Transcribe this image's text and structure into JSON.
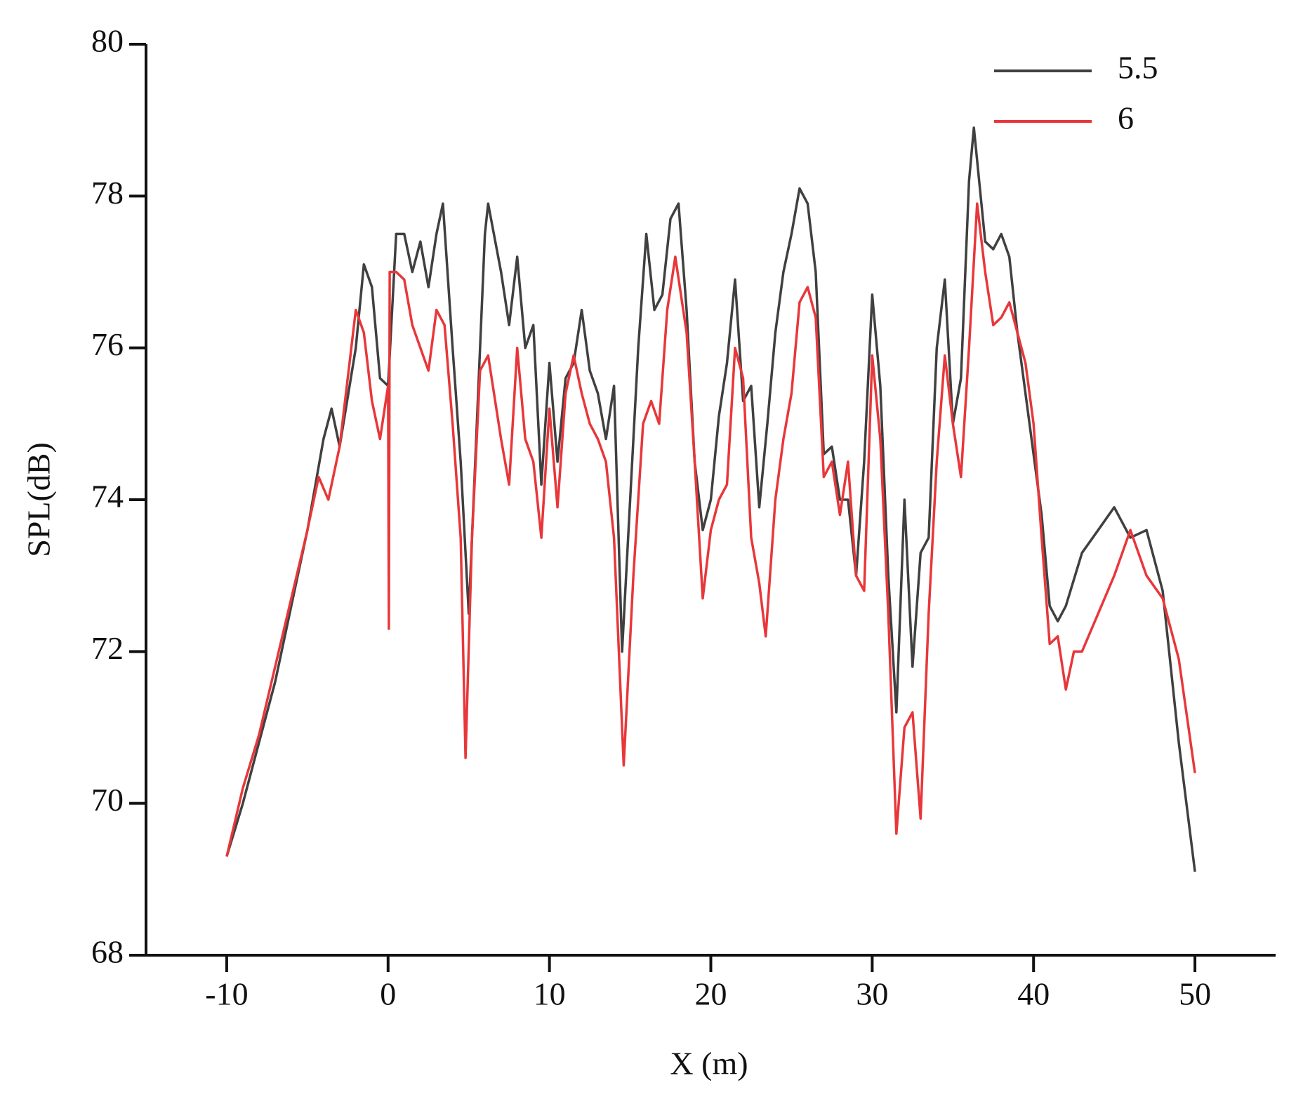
{
  "chart_data": {
    "type": "line",
    "xlabel": "X (m)",
    "ylabel": "SPL(dB)",
    "xlim": [
      -15,
      55
    ],
    "xticks": [
      -10,
      0,
      10,
      20,
      30,
      40,
      50
    ],
    "ylim": [
      68,
      80
    ],
    "yticks": [
      68,
      70,
      72,
      74,
      76,
      78,
      80
    ],
    "legend": "upper right",
    "series": [
      {
        "name": "5.5",
        "color": "#404040",
        "x": [
          -10,
          -9,
          -8,
          -7,
          -6,
          -5,
          -4,
          -3.5,
          -3,
          -2,
          -1.5,
          -1,
          -0.5,
          0,
          0.5,
          1,
          1.5,
          2,
          2.5,
          3,
          3.4,
          4,
          4.5,
          5,
          5.5,
          6,
          6.2,
          7,
          7.5,
          8,
          8.5,
          9,
          9.5,
          10,
          10.5,
          11,
          11.5,
          12,
          12.5,
          13,
          13.5,
          14,
          14.5,
          15,
          15.5,
          16,
          16.5,
          17,
          17.5,
          18,
          18.5,
          19,
          19.5,
          20,
          20.5,
          21,
          21.5,
          22,
          22.5,
          23,
          23.5,
          24,
          24.5,
          25,
          25.5,
          26,
          26.5,
          27,
          27.5,
          28,
          28.5,
          29,
          29.5,
          30,
          30.5,
          31,
          31.5,
          32,
          32.5,
          33,
          33.5,
          34,
          34.5,
          35,
          35.5,
          36,
          36.3,
          37,
          37.5,
          38,
          38.5,
          39,
          40,
          40.5,
          41,
          41.5,
          42,
          43,
          44,
          45,
          46,
          47,
          48,
          49,
          50
        ],
        "y": [
          69.3,
          70.0,
          70.8,
          71.6,
          72.6,
          73.6,
          74.8,
          75.2,
          74.7,
          76.0,
          77.1,
          76.8,
          75.6,
          75.5,
          77.5,
          77.5,
          77.0,
          77.4,
          76.8,
          77.5,
          77.9,
          76.0,
          74.5,
          72.5,
          75.0,
          77.5,
          77.9,
          77.0,
          76.3,
          77.2,
          76.0,
          76.3,
          74.2,
          75.8,
          74.5,
          75.6,
          75.8,
          76.5,
          75.7,
          75.4,
          74.8,
          75.5,
          72.0,
          74.0,
          76.0,
          77.5,
          76.5,
          76.7,
          77.7,
          77.9,
          76.5,
          74.5,
          73.6,
          74.0,
          75.1,
          75.8,
          76.9,
          75.3,
          75.5,
          73.9,
          75.0,
          76.2,
          77.0,
          77.5,
          78.1,
          77.9,
          77.0,
          74.6,
          74.7,
          74.0,
          74.0,
          73.0,
          74.5,
          76.7,
          75.5,
          73.0,
          71.2,
          74.0,
          71.8,
          73.3,
          73.5,
          76.0,
          76.9,
          75.0,
          75.6,
          78.2,
          78.9,
          77.4,
          77.3,
          77.5,
          77.2,
          76.2,
          74.6,
          73.8,
          72.6,
          72.4,
          72.6,
          73.3,
          73.6,
          73.9,
          73.5,
          73.6,
          72.8,
          70.8,
          69.1
        ]
      },
      {
        "name": "6",
        "color": "#e8373a",
        "x": [
          -10,
          -9,
          -8,
          -7,
          -6,
          -5,
          -4.3,
          -3.7,
          -3,
          -2,
          -1.5,
          -1,
          -0.5,
          0,
          0.05,
          0.1,
          0.5,
          1,
          1.5,
          2,
          2.5,
          3,
          3.5,
          4,
          4.5,
          4.8,
          5.2,
          5.7,
          6.2,
          7,
          7.5,
          8,
          8.5,
          9,
          9.5,
          10,
          10.5,
          11,
          11.5,
          12,
          12.5,
          13,
          13.5,
          14,
          14.6,
          15.2,
          15.8,
          16.3,
          16.8,
          17.3,
          17.8,
          18.5,
          19,
          19.5,
          20,
          20.5,
          21,
          21.5,
          22,
          22.5,
          23,
          23.4,
          24,
          24.5,
          25,
          25.5,
          26,
          26.5,
          27,
          27.5,
          28,
          28.5,
          29,
          29.5,
          30,
          30.5,
          31,
          31.5,
          32,
          32.5,
          33,
          33.5,
          34,
          34.5,
          35,
          35.5,
          36,
          36.5,
          37,
          37.5,
          38,
          38.5,
          39,
          39.5,
          40,
          40.5,
          41,
          41.5,
          42,
          42.5,
          43,
          44,
          45,
          46,
          47,
          48,
          49,
          50
        ],
        "y": [
          69.3,
          70.2,
          70.9,
          71.8,
          72.7,
          73.6,
          74.3,
          74.0,
          74.7,
          76.5,
          76.2,
          75.3,
          74.8,
          75.5,
          72.3,
          77.0,
          77.0,
          76.9,
          76.3,
          76.0,
          75.7,
          76.5,
          76.3,
          75.0,
          73.5,
          70.6,
          73.5,
          75.7,
          75.9,
          74.8,
          74.2,
          76.0,
          74.8,
          74.5,
          73.5,
          75.2,
          73.9,
          75.4,
          75.9,
          75.4,
          75.0,
          74.8,
          74.5,
          73.5,
          70.5,
          73.0,
          75.0,
          75.3,
          75.0,
          76.5,
          77.2,
          76.2,
          74.5,
          72.7,
          73.6,
          74.0,
          74.2,
          76.0,
          75.6,
          73.5,
          72.9,
          72.2,
          74.0,
          74.8,
          75.4,
          76.6,
          76.8,
          76.4,
          74.3,
          74.5,
          73.8,
          74.5,
          73.0,
          72.8,
          75.9,
          74.8,
          72.5,
          69.6,
          71.0,
          71.2,
          69.8,
          72.5,
          74.5,
          75.9,
          75.0,
          74.3,
          76.0,
          77.9,
          77.0,
          76.3,
          76.4,
          76.6,
          76.2,
          75.8,
          75.0,
          73.5,
          72.1,
          72.2,
          71.5,
          72.0,
          72.0,
          72.5,
          73.0,
          73.6,
          73.0,
          72.7,
          71.9,
          70.4
        ]
      }
    ]
  }
}
